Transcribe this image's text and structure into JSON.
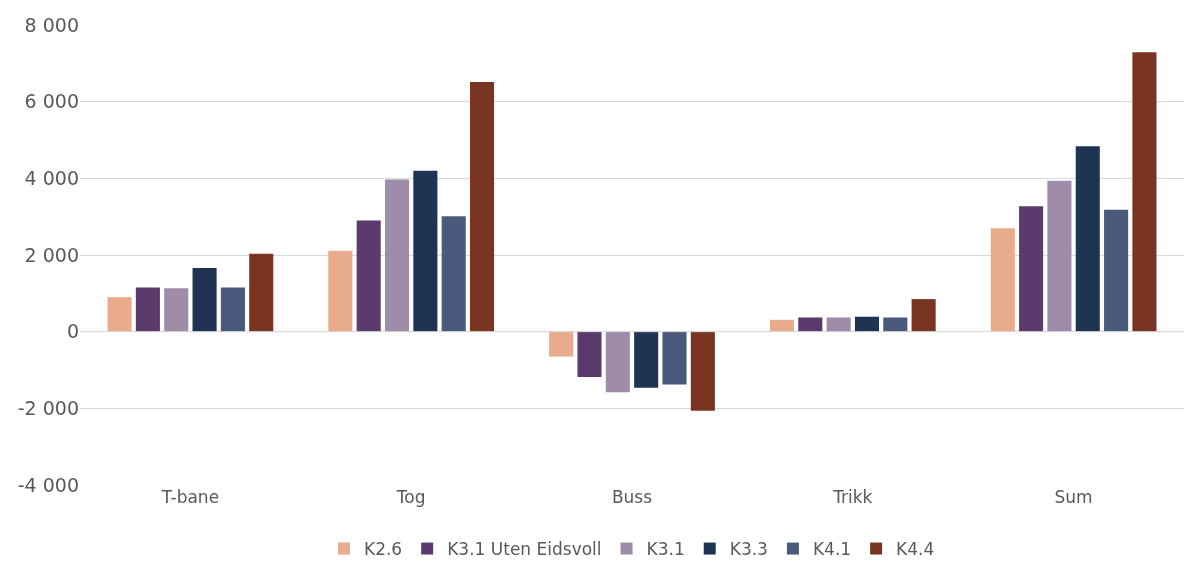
{
  "chart_data": {
    "type": "bar",
    "categories": [
      "T-bane",
      "Tog",
      "Buss",
      "Trikk",
      "Sum"
    ],
    "series": [
      {
        "name": "K2.6",
        "color": "#e8ac8c",
        "values": [
          900,
          2110,
          -650,
          310,
          2700
        ]
      },
      {
        "name": "K3.1 Uten Eidsvoll",
        "color": "#5b3a6e",
        "values": [
          1150,
          2900,
          -1180,
          370,
          3270
        ]
      },
      {
        "name": "K3.1",
        "color": "#9e8ca8",
        "values": [
          1130,
          3970,
          -1580,
          370,
          3940
        ]
      },
      {
        "name": "K3.3",
        "color": "#1e3452",
        "values": [
          1660,
          4200,
          -1460,
          390,
          4840
        ]
      },
      {
        "name": "K4.1",
        "color": "#4a5a7c",
        "values": [
          1150,
          3010,
          -1380,
          370,
          3180
        ]
      },
      {
        "name": "K4.4",
        "color": "#7a3522",
        "values": [
          2030,
          6510,
          -2060,
          850,
          7290
        ]
      }
    ],
    "ylim": [
      -4000,
      8000
    ],
    "yticks": [
      {
        "value": -4000,
        "label": "-4 000"
      },
      {
        "value": -2000,
        "label": "-2 000"
      },
      0,
      {
        "value": 2000,
        "label": "2 000"
      },
      {
        "value": 4000,
        "label": "4 000"
      },
      {
        "value": 6000,
        "label": "6 000"
      },
      {
        "value": 8000,
        "label": "8 000"
      }
    ],
    "grid": "y",
    "legend": "bottom"
  }
}
